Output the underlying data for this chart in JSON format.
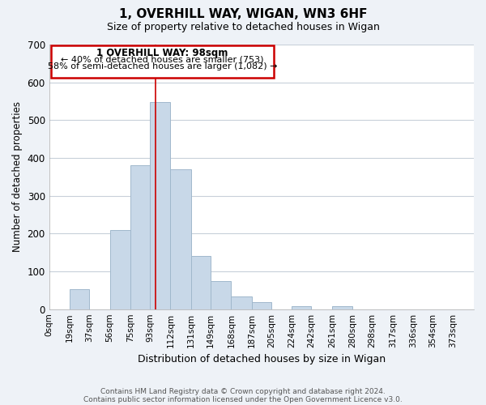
{
  "title": "1, OVERHILL WAY, WIGAN, WN3 6HF",
  "subtitle": "Size of property relative to detached houses in Wigan",
  "xlabel": "Distribution of detached houses by size in Wigan",
  "ylabel": "Number of detached properties",
  "bar_left_edges": [
    0,
    19,
    37,
    56,
    75,
    93,
    112,
    131,
    149,
    168,
    187,
    205,
    224,
    242,
    261,
    280,
    298,
    317,
    336,
    354
  ],
  "bar_widths": [
    19,
    18,
    19,
    19,
    18,
    19,
    19,
    18,
    19,
    19,
    18,
    19,
    18,
    19,
    19,
    18,
    19,
    19,
    18,
    19
  ],
  "bar_heights": [
    0,
    53,
    0,
    210,
    381,
    548,
    370,
    141,
    75,
    33,
    19,
    0,
    8,
    0,
    8,
    0,
    0,
    0,
    0,
    0
  ],
  "bar_color": "#c8d8e8",
  "bar_edgecolor": "#a0b8cc",
  "x_tick_labels": [
    "0sqm",
    "19sqm",
    "37sqm",
    "56sqm",
    "75sqm",
    "93sqm",
    "112sqm",
    "131sqm",
    "149sqm",
    "168sqm",
    "187sqm",
    "205sqm",
    "224sqm",
    "242sqm",
    "261sqm",
    "280sqm",
    "298sqm",
    "317sqm",
    "336sqm",
    "354sqm",
    "373sqm"
  ],
  "x_tick_positions": [
    0,
    19,
    37,
    56,
    75,
    93,
    112,
    131,
    149,
    168,
    187,
    205,
    224,
    242,
    261,
    280,
    298,
    317,
    336,
    354,
    373
  ],
  "ylim": [
    0,
    700
  ],
  "yticks": [
    0,
    100,
    200,
    300,
    400,
    500,
    600,
    700
  ],
  "xlim": [
    0,
    392
  ],
  "vline_x": 98,
  "vline_color": "#cc0000",
  "annotation_title": "1 OVERHILL WAY: 98sqm",
  "annotation_line1": "← 40% of detached houses are smaller (753)",
  "annotation_line2": "58% of semi-detached houses are larger (1,082) →",
  "footer1": "Contains HM Land Registry data © Crown copyright and database right 2024.",
  "footer2": "Contains public sector information licensed under the Open Government Licence v3.0.",
  "background_color": "#eef2f7",
  "plot_bg_color": "#ffffff",
  "grid_color": "#c8d0da"
}
